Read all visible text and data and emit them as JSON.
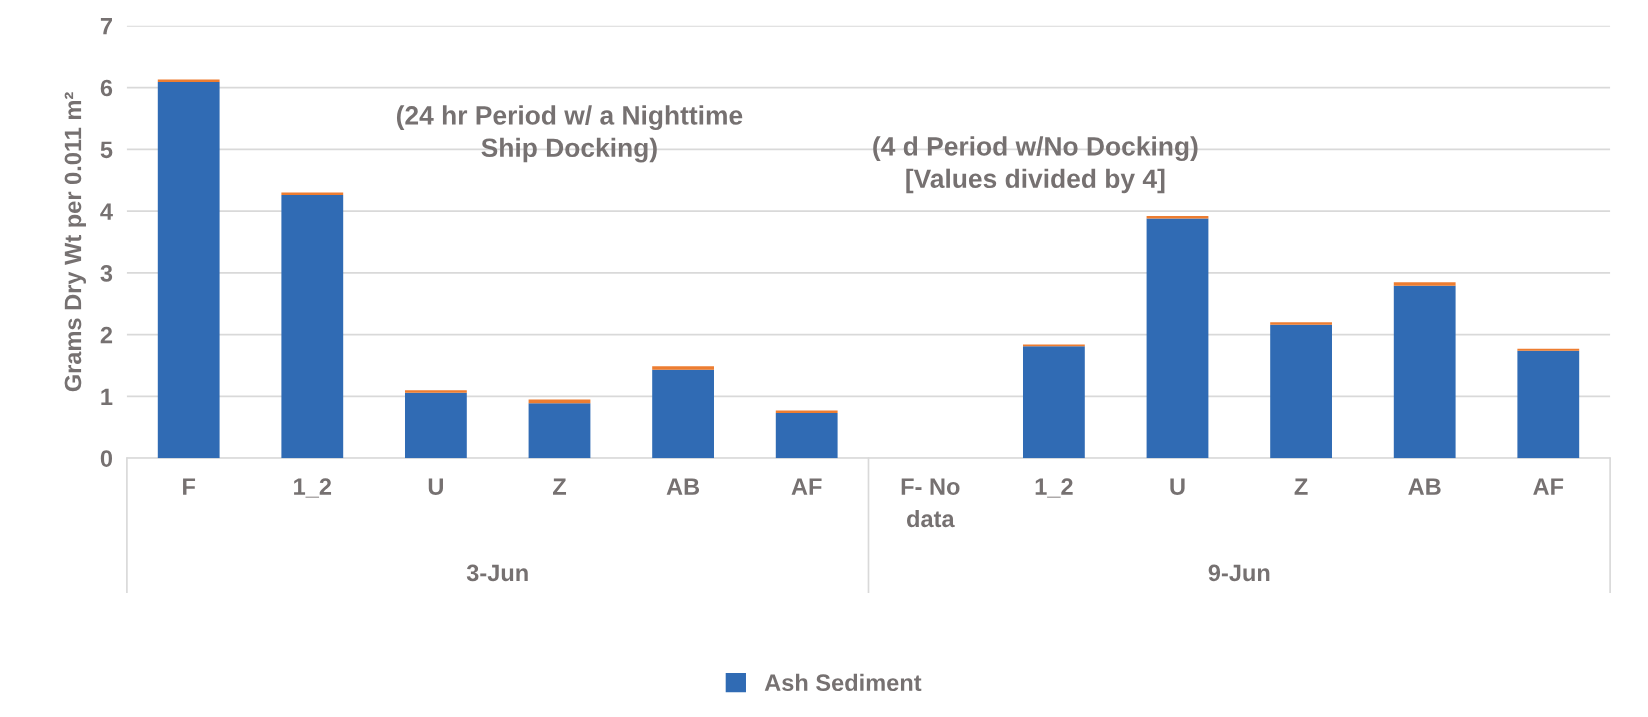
{
  "chart_data": {
    "type": "bar",
    "stacked": true,
    "ylabel": "Grams Dry Wt per 0.011 m²",
    "categories": [
      "F",
      "1_2",
      "U",
      "Z",
      "AB",
      "AF",
      "F- No\ndata",
      "1_2",
      "U",
      "Z",
      "AB",
      "AF"
    ],
    "series": [
      {
        "name": "Ash Sediment",
        "color": "#306bb4",
        "values": [
          6.09,
          4.26,
          1.06,
          0.89,
          1.43,
          0.73,
          null,
          1.81,
          3.88,
          2.16,
          2.79,
          1.74
        ]
      },
      {
        "color": "#ed7d31",
        "values": [
          0.04,
          0.04,
          0.04,
          0.06,
          0.06,
          0.04,
          null,
          0.03,
          0.04,
          0.04,
          0.06,
          0.03
        ]
      }
    ],
    "ylim": [
      0,
      7
    ],
    "yticks": [
      0,
      1,
      2,
      3,
      4,
      5,
      6,
      7
    ],
    "grid": "y",
    "legend": "bottom",
    "annotations": [
      "(24 hr Period w/ a Nighttime\nShip Docking)",
      "(4 d Period w/No Docking)\n[Values divided by 4]",
      "3-Jun",
      "9-Jun"
    ]
  }
}
